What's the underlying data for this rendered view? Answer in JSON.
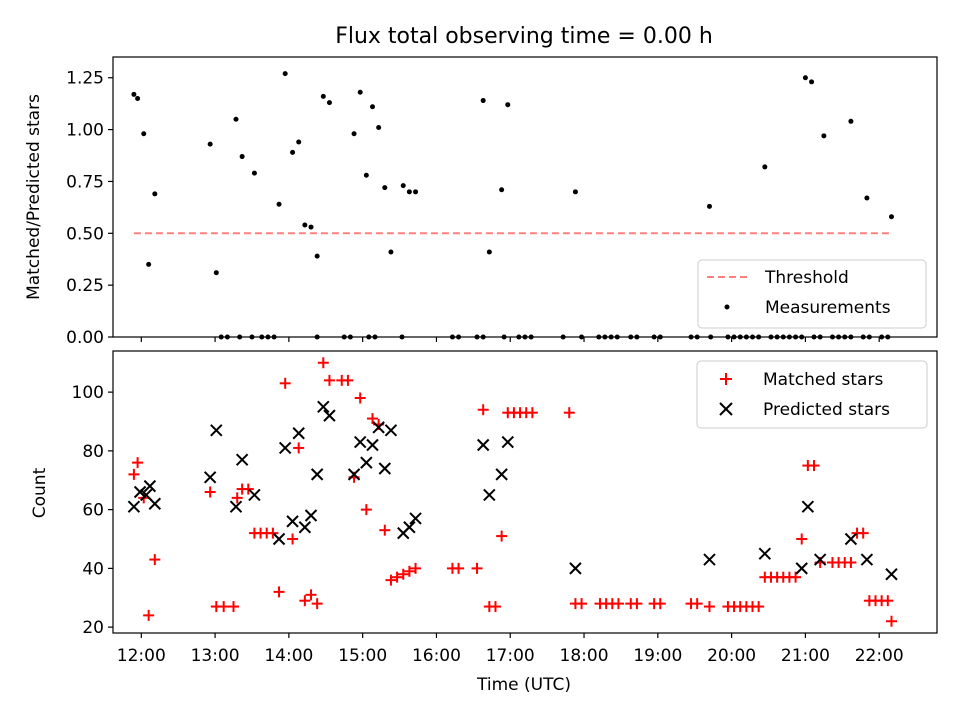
{
  "title": "Flux total observing time = 0.00 h",
  "colors": {
    "threshold": "#ff8080",
    "measurement": "#000000",
    "matched": "#ff0000",
    "predicted": "#000000"
  },
  "chart_data": [
    {
      "type": "scatter",
      "panel": "top",
      "title": "Flux total observing time = 0.00 h",
      "xlabel": "",
      "ylabel": "Matched/Predicted stars",
      "xlim": [
        "11:37",
        "22:47"
      ],
      "ylim": [
        0.0,
        1.35
      ],
      "yticks": [
        "0.00",
        "0.25",
        "0.50",
        "0.75",
        "1.00",
        "1.25"
      ],
      "legend_position": "lower-right",
      "series": [
        {
          "name": "Threshold",
          "kind": "line",
          "style": "dashed",
          "x": [
            "11:54",
            "22:10"
          ],
          "y": [
            0.5,
            0.5
          ]
        },
        {
          "name": "Measurements",
          "kind": "points",
          "points": [
            [
              "11:54",
              1.17
            ],
            [
              "11:57",
              1.15
            ],
            [
              "12:02",
              0.98
            ],
            [
              "12:06",
              0.35
            ],
            [
              "12:11",
              0.69
            ],
            [
              "12:56",
              0.93
            ],
            [
              "13:01",
              0.31
            ],
            [
              "13:17",
              1.05
            ],
            [
              "13:22",
              0.87
            ],
            [
              "13:32",
              0.79
            ],
            [
              "13:52",
              0.64
            ],
            [
              "13:57",
              1.27
            ],
            [
              "14:03",
              0.89
            ],
            [
              "14:08",
              0.94
            ],
            [
              "14:13",
              0.54
            ],
            [
              "14:18",
              0.53
            ],
            [
              "14:23",
              0.39
            ],
            [
              "14:28",
              1.16
            ],
            [
              "14:33",
              1.13
            ],
            [
              "14:53",
              0.98
            ],
            [
              "14:58",
              1.18
            ],
            [
              "15:03",
              0.78
            ],
            [
              "15:08",
              1.11
            ],
            [
              "15:13",
              1.01
            ],
            [
              "15:18",
              0.72
            ],
            [
              "15:23",
              0.41
            ],
            [
              "15:33",
              0.73
            ],
            [
              "15:38",
              0.7
            ],
            [
              "15:43",
              0.7
            ],
            [
              "16:38",
              1.14
            ],
            [
              "16:43",
              0.41
            ],
            [
              "16:53",
              0.71
            ],
            [
              "16:58",
              1.12
            ],
            [
              "17:53",
              0.7
            ],
            [
              "19:42",
              0.63
            ],
            [
              "20:27",
              0.82
            ],
            [
              "21:00",
              1.25
            ],
            [
              "21:05",
              1.23
            ],
            [
              "21:15",
              0.97
            ],
            [
              "21:37",
              1.04
            ],
            [
              "21:50",
              0.67
            ],
            [
              "22:10",
              0.58
            ],
            [
              "13:05",
              0.0
            ],
            [
              "13:10",
              0.0
            ],
            [
              "13:20",
              0.0
            ],
            [
              "13:30",
              0.0
            ],
            [
              "13:38",
              0.0
            ],
            [
              "13:43",
              0.0
            ],
            [
              "13:48",
              0.0
            ],
            [
              "14:23",
              0.0
            ],
            [
              "14:45",
              0.0
            ],
            [
              "14:50",
              0.0
            ],
            [
              "15:05",
              0.0
            ],
            [
              "15:10",
              0.0
            ],
            [
              "15:32",
              0.0
            ],
            [
              "16:13",
              0.0
            ],
            [
              "16:18",
              0.0
            ],
            [
              "16:33",
              0.0
            ],
            [
              "16:38",
              0.0
            ],
            [
              "16:55",
              0.0
            ],
            [
              "17:07",
              0.0
            ],
            [
              "17:12",
              0.0
            ],
            [
              "17:17",
              0.0
            ],
            [
              "17:43",
              0.0
            ],
            [
              "17:58",
              0.0
            ],
            [
              "18:12",
              0.0
            ],
            [
              "18:17",
              0.0
            ],
            [
              "18:22",
              0.0
            ],
            [
              "18:27",
              0.0
            ],
            [
              "18:38",
              0.0
            ],
            [
              "18:43",
              0.0
            ],
            [
              "18:57",
              0.0
            ],
            [
              "19:02",
              0.0
            ],
            [
              "19:27",
              0.0
            ],
            [
              "19:32",
              0.0
            ],
            [
              "19:43",
              0.0
            ],
            [
              "19:57",
              0.0
            ],
            [
              "20:02",
              0.0
            ],
            [
              "20:07",
              0.0
            ],
            [
              "20:12",
              0.0
            ],
            [
              "20:17",
              0.0
            ],
            [
              "20:22",
              0.0
            ],
            [
              "20:32",
              0.0
            ],
            [
              "20:37",
              0.0
            ],
            [
              "20:42",
              0.0
            ],
            [
              "20:47",
              0.0
            ],
            [
              "20:52",
              0.0
            ],
            [
              "20:57",
              0.0
            ],
            [
              "21:07",
              0.0
            ],
            [
              "21:12",
              0.0
            ],
            [
              "21:22",
              0.0
            ],
            [
              "21:27",
              0.0
            ],
            [
              "21:32",
              0.0
            ],
            [
              "21:37",
              0.0
            ],
            [
              "21:47",
              0.0
            ],
            [
              "21:52",
              0.0
            ],
            [
              "22:02",
              0.0
            ],
            [
              "22:07",
              0.0
            ]
          ]
        }
      ]
    },
    {
      "type": "scatter",
      "panel": "bottom",
      "xlabel": "Time (UTC)",
      "ylabel": "Count",
      "xlim": [
        "11:37",
        "22:47"
      ],
      "ylim": [
        18,
        114
      ],
      "yticks": [
        "20",
        "40",
        "60",
        "80",
        "100"
      ],
      "xticks": [
        "12:00",
        "13:00",
        "14:00",
        "15:00",
        "16:00",
        "17:00",
        "18:00",
        "19:00",
        "20:00",
        "21:00",
        "22:00"
      ],
      "legend_position": "upper-right",
      "series": [
        {
          "name": "Matched stars",
          "marker": "plus",
          "points": [
            [
              "11:54",
              72
            ],
            [
              "11:57",
              76
            ],
            [
              "12:02",
              64
            ],
            [
              "12:06",
              24
            ],
            [
              "12:11",
              43
            ],
            [
              "12:56",
              66
            ],
            [
              "13:01",
              27
            ],
            [
              "13:07",
              27
            ],
            [
              "13:15",
              27
            ],
            [
              "13:18",
              64
            ],
            [
              "13:22",
              67
            ],
            [
              "13:27",
              67
            ],
            [
              "13:32",
              52
            ],
            [
              "13:37",
              52
            ],
            [
              "13:42",
              52
            ],
            [
              "13:47",
              52
            ],
            [
              "13:52",
              32
            ],
            [
              "13:57",
              103
            ],
            [
              "14:03",
              50
            ],
            [
              "14:08",
              81
            ],
            [
              "14:13",
              29
            ],
            [
              "14:18",
              31
            ],
            [
              "14:23",
              28
            ],
            [
              "14:28",
              110
            ],
            [
              "14:33",
              104
            ],
            [
              "14:43",
              104
            ],
            [
              "14:48",
              104
            ],
            [
              "14:53",
              71
            ],
            [
              "14:58",
              98
            ],
            [
              "15:03",
              60
            ],
            [
              "15:08",
              91
            ],
            [
              "15:13",
              89
            ],
            [
              "15:18",
              53
            ],
            [
              "15:23",
              36
            ],
            [
              "15:28",
              37
            ],
            [
              "15:33",
              38
            ],
            [
              "15:38",
              39
            ],
            [
              "15:43",
              40
            ],
            [
              "16:13",
              40
            ],
            [
              "16:18",
              40
            ],
            [
              "16:33",
              40
            ],
            [
              "16:38",
              94
            ],
            [
              "16:43",
              27
            ],
            [
              "16:48",
              27
            ],
            [
              "16:53",
              51
            ],
            [
              "16:58",
              93
            ],
            [
              "17:03",
              93
            ],
            [
              "17:08",
              93
            ],
            [
              "17:13",
              93
            ],
            [
              "17:18",
              93
            ],
            [
              "17:48",
              93
            ],
            [
              "17:53",
              28
            ],
            [
              "17:58",
              28
            ],
            [
              "18:13",
              28
            ],
            [
              "18:18",
              28
            ],
            [
              "18:23",
              28
            ],
            [
              "18:28",
              28
            ],
            [
              "18:38",
              28
            ],
            [
              "18:43",
              28
            ],
            [
              "18:57",
              28
            ],
            [
              "19:02",
              28
            ],
            [
              "19:27",
              28
            ],
            [
              "19:32",
              28
            ],
            [
              "19:42",
              27
            ],
            [
              "19:57",
              27
            ],
            [
              "20:02",
              27
            ],
            [
              "20:07",
              27
            ],
            [
              "20:12",
              27
            ],
            [
              "20:17",
              27
            ],
            [
              "20:22",
              27
            ],
            [
              "20:27",
              37
            ],
            [
              "20:32",
              37
            ],
            [
              "20:37",
              37
            ],
            [
              "20:42",
              37
            ],
            [
              "20:47",
              37
            ],
            [
              "20:52",
              37
            ],
            [
              "20:57",
              50
            ],
            [
              "21:02",
              75
            ],
            [
              "21:07",
              75
            ],
            [
              "21:12",
              42
            ],
            [
              "21:22",
              42
            ],
            [
              "21:27",
              42
            ],
            [
              "21:32",
              42
            ],
            [
              "21:37",
              42
            ],
            [
              "21:42",
              52
            ],
            [
              "21:47",
              52
            ],
            [
              "21:52",
              29
            ],
            [
              "21:57",
              29
            ],
            [
              "22:02",
              29
            ],
            [
              "22:07",
              29
            ],
            [
              "22:10",
              22
            ]
          ]
        },
        {
          "name": "Predicted stars",
          "marker": "x",
          "points": [
            [
              "11:54",
              61
            ],
            [
              "11:59",
              66
            ],
            [
              "12:04",
              65
            ],
            [
              "12:07",
              68
            ],
            [
              "12:11",
              62
            ],
            [
              "12:56",
              71
            ],
            [
              "13:01",
              87
            ],
            [
              "13:17",
              61
            ],
            [
              "13:22",
              77
            ],
            [
              "13:32",
              65
            ],
            [
              "13:52",
              50
            ],
            [
              "13:57",
              81
            ],
            [
              "14:03",
              56
            ],
            [
              "14:08",
              86
            ],
            [
              "14:13",
              54
            ],
            [
              "14:18",
              58
            ],
            [
              "14:23",
              72
            ],
            [
              "14:28",
              95
            ],
            [
              "14:33",
              92
            ],
            [
              "14:53",
              72
            ],
            [
              "14:58",
              83
            ],
            [
              "15:03",
              76
            ],
            [
              "15:08",
              82
            ],
            [
              "15:13",
              88
            ],
            [
              "15:18",
              74
            ],
            [
              "15:23",
              87
            ],
            [
              "15:33",
              52
            ],
            [
              "15:38",
              54
            ],
            [
              "15:43",
              57
            ],
            [
              "16:38",
              82
            ],
            [
              "16:43",
              65
            ],
            [
              "16:53",
              72
            ],
            [
              "16:58",
              83
            ],
            [
              "17:53",
              40
            ],
            [
              "19:42",
              43
            ],
            [
              "20:27",
              45
            ],
            [
              "20:57",
              40
            ],
            [
              "21:02",
              61
            ],
            [
              "21:12",
              43
            ],
            [
              "21:37",
              50
            ],
            [
              "21:50",
              43
            ],
            [
              "22:10",
              38
            ]
          ]
        }
      ]
    }
  ],
  "legend_top": {
    "threshold_label": "Threshold",
    "measurements_label": "Measurements"
  },
  "legend_bottom": {
    "matched_label": "Matched stars",
    "predicted_label": "Predicted stars"
  }
}
